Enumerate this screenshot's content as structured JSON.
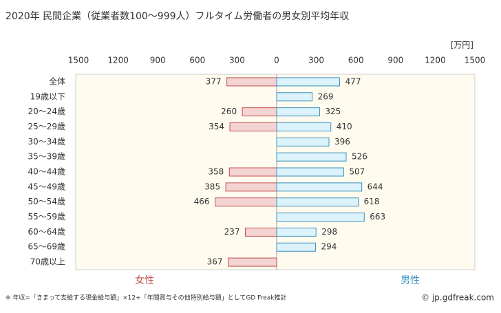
{
  "chart_data": {
    "type": "butterfly-bar",
    "title": "2020年 民間企業（従業者数100～999人）フルタイム労働者の男女別平均年収",
    "unit_label": "[万円]",
    "categories": [
      "全体",
      "19歳以下",
      "20～24歳",
      "25～29歳",
      "30～34歳",
      "35～39歳",
      "40～44歳",
      "45～49歳",
      "50～54歳",
      "55～59歳",
      "60～64歳",
      "65～69歳",
      "70歳以上"
    ],
    "series": [
      {
        "name": "女性",
        "color": "#c0504d",
        "fill": "#f4d3d3",
        "side": "left",
        "values": [
          377,
          null,
          260,
          354,
          null,
          null,
          358,
          385,
          466,
          null,
          237,
          null,
          367
        ]
      },
      {
        "name": "男性",
        "color": "#3a8fc0",
        "fill": "#dcf3fb",
        "side": "right",
        "values": [
          477,
          269,
          325,
          410,
          396,
          526,
          507,
          644,
          618,
          663,
          298,
          294,
          null
        ]
      }
    ],
    "xlim": [
      0,
      1500
    ],
    "xticks": [
      0,
      300,
      600,
      900,
      1200,
      1500
    ],
    "note": "※ 年収=「きまって支給する現金給与額」×12+「年間賞与その他特別給与額」としてGD Freak推計",
    "credit": "© jp.gdfreak.com"
  }
}
